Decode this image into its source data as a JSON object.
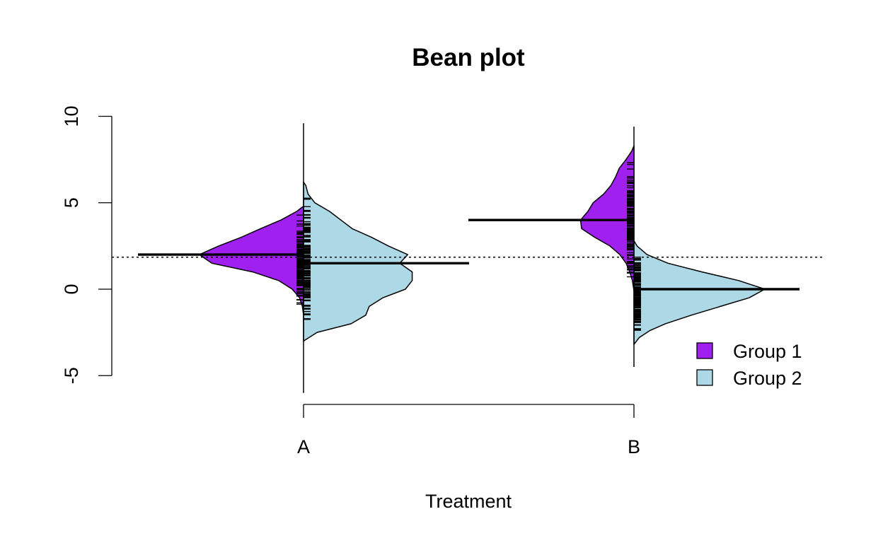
{
  "chart_data": {
    "type": "violin",
    "variant": "split bean plot",
    "title": "Bean plot",
    "xlabel": "Treatment",
    "ylabel": "",
    "ylim": [
      -5,
      10
    ],
    "yticks": [
      -5,
      0,
      5,
      10
    ],
    "categories": [
      "A",
      "B"
    ],
    "overall_mean": 1.85,
    "legend_position": "bottom-right",
    "series": [
      {
        "name": "Group 1",
        "color": "#A020F0",
        "side": "left",
        "means": [
          2.0,
          4.0
        ],
        "ranges": [
          [
            -1.5,
            4.8
          ],
          [
            -0.1,
            8.3
          ]
        ],
        "density_profiles": [
          [
            [
              -1.5,
              0.0
            ],
            [
              -1.0,
              0.1
            ],
            [
              -0.5,
              0.35
            ],
            [
              0.0,
              1.0
            ],
            [
              0.5,
              2.2
            ],
            [
              1.0,
              4.5
            ],
            [
              1.5,
              8.1
            ],
            [
              2.0,
              9.2
            ],
            [
              2.5,
              7.5
            ],
            [
              3.0,
              5.5
            ],
            [
              3.5,
              3.8
            ],
            [
              4.0,
              2.0
            ],
            [
              4.5,
              0.6
            ],
            [
              4.8,
              0.0
            ]
          ],
          [
            [
              -0.1,
              0.0
            ],
            [
              0.5,
              0.3
            ],
            [
              1.0,
              0.8
            ],
            [
              1.5,
              1.5
            ],
            [
              2.0,
              2.7
            ],
            [
              2.5,
              4.6
            ],
            [
              3.0,
              7.5
            ],
            [
              3.5,
              10.0
            ],
            [
              4.0,
              10.2
            ],
            [
              4.5,
              8.8
            ],
            [
              5.0,
              7.8
            ],
            [
              5.5,
              5.8
            ],
            [
              6.0,
              4.4
            ],
            [
              6.5,
              3.5
            ],
            [
              7.0,
              2.8
            ],
            [
              7.5,
              1.5
            ],
            [
              8.0,
              0.4
            ],
            [
              8.3,
              0.0
            ]
          ]
        ]
      },
      {
        "name": "Group 2",
        "color": "#ADD8E6",
        "side": "right",
        "means": [
          1.5,
          0.0
        ],
        "ranges": [
          [
            -3.0,
            6.2
          ],
          [
            -3.2,
            2.8
          ]
        ],
        "density_profiles": [
          [
            [
              -3.0,
              0.0
            ],
            [
              -2.5,
              1.2
            ],
            [
              -2.0,
              4.2
            ],
            [
              -1.5,
              5.5
            ],
            [
              -1.0,
              5.8
            ],
            [
              -0.5,
              7.0
            ],
            [
              0.0,
              9.0
            ],
            [
              0.5,
              9.6
            ],
            [
              1.0,
              9.6
            ],
            [
              1.5,
              8.5
            ],
            [
              2.0,
              9.2
            ],
            [
              2.5,
              7.5
            ],
            [
              3.0,
              6.0
            ],
            [
              3.5,
              4.3
            ],
            [
              4.0,
              3.3
            ],
            [
              4.5,
              2.3
            ],
            [
              5.0,
              1.0
            ],
            [
              5.5,
              0.4
            ],
            [
              6.0,
              0.2
            ],
            [
              6.2,
              0.0
            ]
          ],
          [
            [
              -3.2,
              0.0
            ],
            [
              -2.8,
              1.0
            ],
            [
              -2.4,
              3.0
            ],
            [
              -2.0,
              6.0
            ],
            [
              -1.5,
              11.0
            ],
            [
              -1.0,
              16.5
            ],
            [
              -0.5,
              22.0
            ],
            [
              0.0,
              25.0
            ],
            [
              0.5,
              20.0
            ],
            [
              1.0,
              13.0
            ],
            [
              1.5,
              6.5
            ],
            [
              2.0,
              2.5
            ],
            [
              2.5,
              0.6
            ],
            [
              2.8,
              0.0
            ]
          ]
        ]
      }
    ]
  }
}
